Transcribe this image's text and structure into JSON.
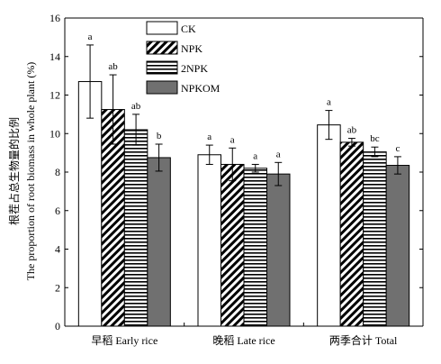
{
  "chart_data": {
    "type": "bar",
    "ylabel_cn": "根茬占总生物量的比例",
    "ylabel_en": "The proportion of root biomass in whole plant (%)",
    "ylim": [
      0,
      16
    ],
    "yticks": [
      0,
      2,
      4,
      6,
      8,
      10,
      12,
      14,
      16
    ],
    "categories": [
      "早稻 Early rice",
      "晚稻 Late rice",
      "两季合计 Total"
    ],
    "legend_position": "top-center",
    "series": [
      {
        "name": "CK",
        "pattern": "white",
        "values": [
          12.7,
          8.9,
          10.45
        ],
        "errors": [
          1.9,
          0.5,
          0.75
        ],
        "letters": [
          "a",
          "a",
          "a"
        ]
      },
      {
        "name": "NPK",
        "pattern": "diagonal",
        "values": [
          11.25,
          8.4,
          9.55
        ],
        "errors": [
          1.8,
          0.85,
          0.2
        ],
        "letters": [
          "ab",
          "a",
          "ab"
        ]
      },
      {
        "name": "2NPK",
        "pattern": "horizontal",
        "values": [
          10.2,
          8.2,
          9.05
        ],
        "errors": [
          0.8,
          0.2,
          0.25
        ],
        "letters": [
          "ab",
          "a",
          "bc"
        ]
      },
      {
        "name": "NPKOM",
        "pattern": "gray",
        "values": [
          8.75,
          7.9,
          8.35
        ],
        "errors": [
          0.7,
          0.6,
          0.45
        ],
        "letters": [
          "b",
          "a",
          "c"
        ]
      }
    ]
  }
}
